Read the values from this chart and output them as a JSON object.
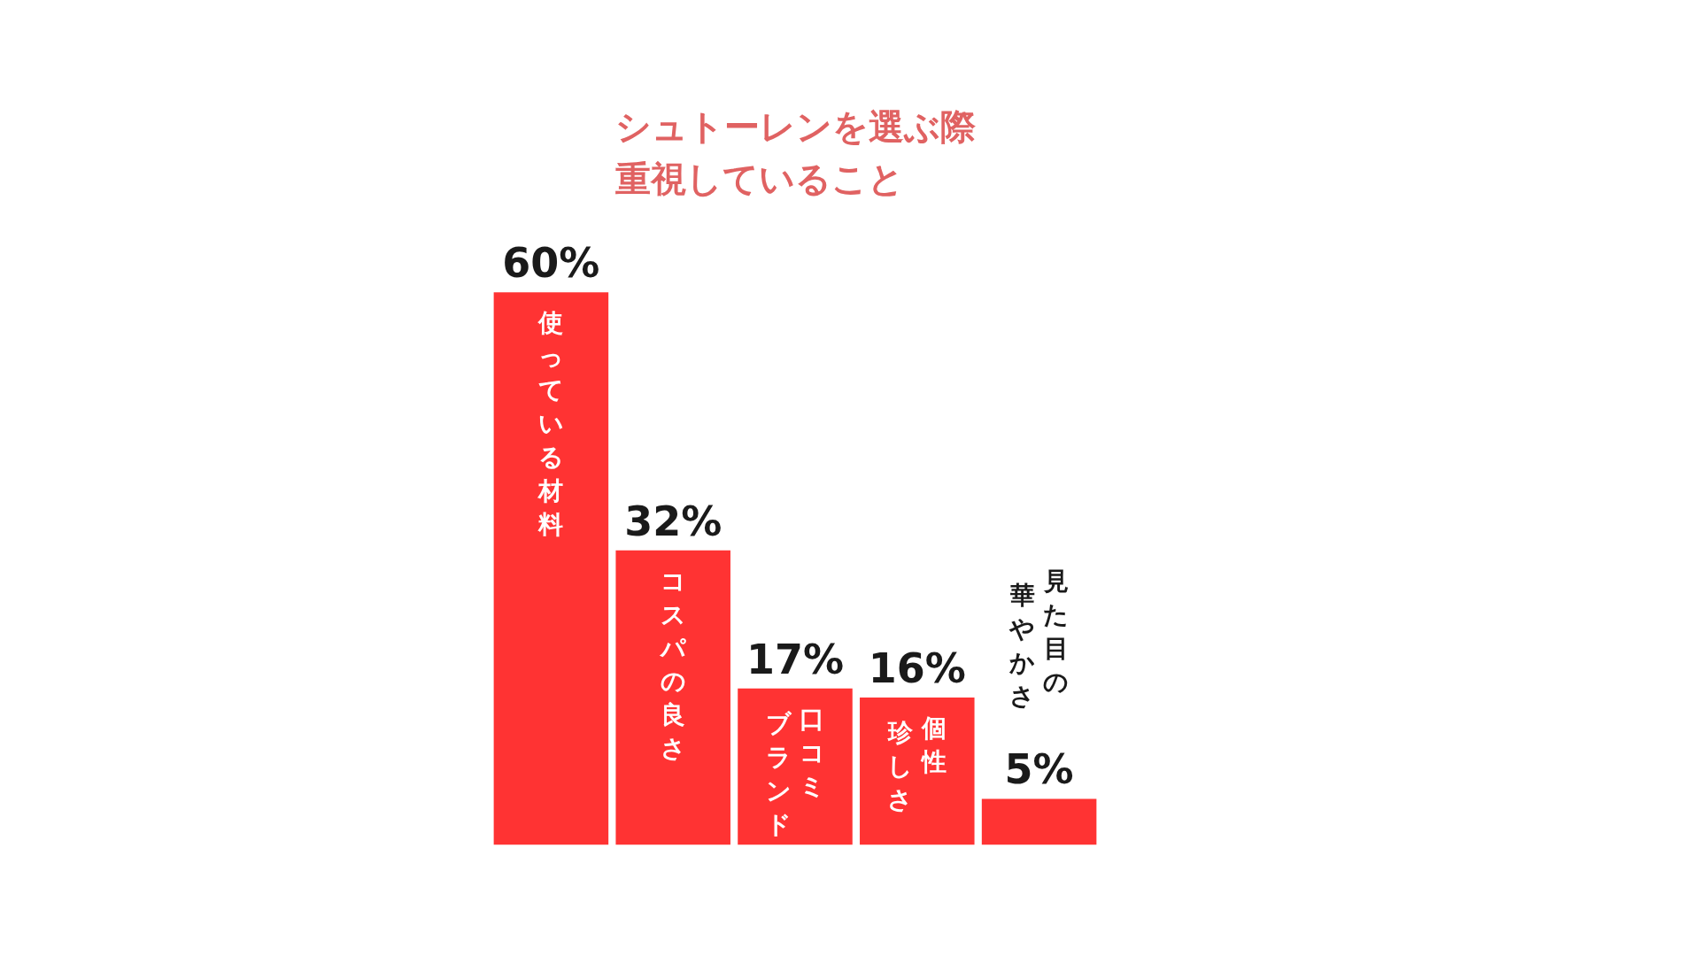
{
  "chart_data": {
    "type": "bar",
    "title": "シュトーレンを選ぶ際重視していること",
    "categories": [
      "使っている材料",
      "コスパの良さ",
      "口コミブランド",
      "個性珍しさ",
      "見た目の華やかさ"
    ],
    "values": [
      60,
      32,
      17,
      16,
      5
    ],
    "value_labels": [
      "60%",
      "32%",
      "17%",
      "16%",
      "5%"
    ],
    "color": "#ff3333",
    "grid": false
  }
}
